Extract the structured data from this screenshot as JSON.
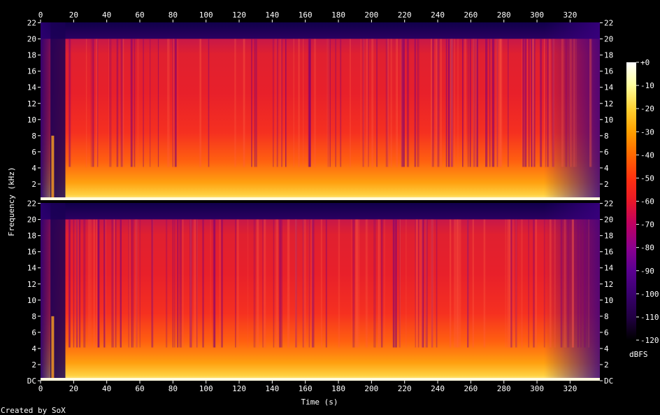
{
  "chart_data": {
    "type": "heatmap",
    "xlabel": "Time (s)",
    "ylabel": "Frequency (kHz)",
    "x_ticks": [
      0,
      20,
      40,
      60,
      80,
      100,
      120,
      140,
      160,
      180,
      200,
      220,
      240,
      260,
      280,
      300,
      320
    ],
    "xlim": [
      0,
      338
    ],
    "ylim_khz": [
      0,
      22.05
    ],
    "channels": [
      {
        "name": "",
        "y_ticks": [
          "22",
          "20",
          "18",
          "16",
          "14",
          "12",
          "10",
          "8",
          "6",
          "4",
          "2"
        ],
        "y_values": [
          22,
          20,
          18,
          16,
          14,
          12,
          10,
          8,
          6,
          4,
          2
        ]
      },
      {
        "name": "",
        "y_ticks": [
          "22",
          "20",
          "18",
          "16",
          "14",
          "12",
          "10",
          "8",
          "6",
          "4",
          "2",
          "DC"
        ],
        "y_values": [
          22,
          20,
          18,
          16,
          14,
          12,
          10,
          8,
          6,
          4,
          2,
          0
        ]
      }
    ],
    "lowpass_cutoff_khz": 20,
    "colorbar": {
      "label": "dBFS",
      "ticks": [
        "+0",
        "-10",
        "-20",
        "-30",
        "-40",
        "-50",
        "-60",
        "-70",
        "-80",
        "-90",
        "-100",
        "-110",
        "-120"
      ],
      "values": [
        0,
        -10,
        -20,
        -30,
        -40,
        -50,
        -60,
        -70,
        -80,
        -90,
        -100,
        -110,
        -120
      ],
      "colors": [
        "#000000",
        "#200040",
        "#3a0070",
        "#5a0090",
        "#8a0090",
        "#c00060",
        "#e81828",
        "#ff3010",
        "#ff6a00",
        "#ffa000",
        "#ffd030",
        "#ffffa0",
        "#ffffff"
      ]
    },
    "grid": false,
    "legend": "right"
  },
  "credit": "Created by SoX"
}
